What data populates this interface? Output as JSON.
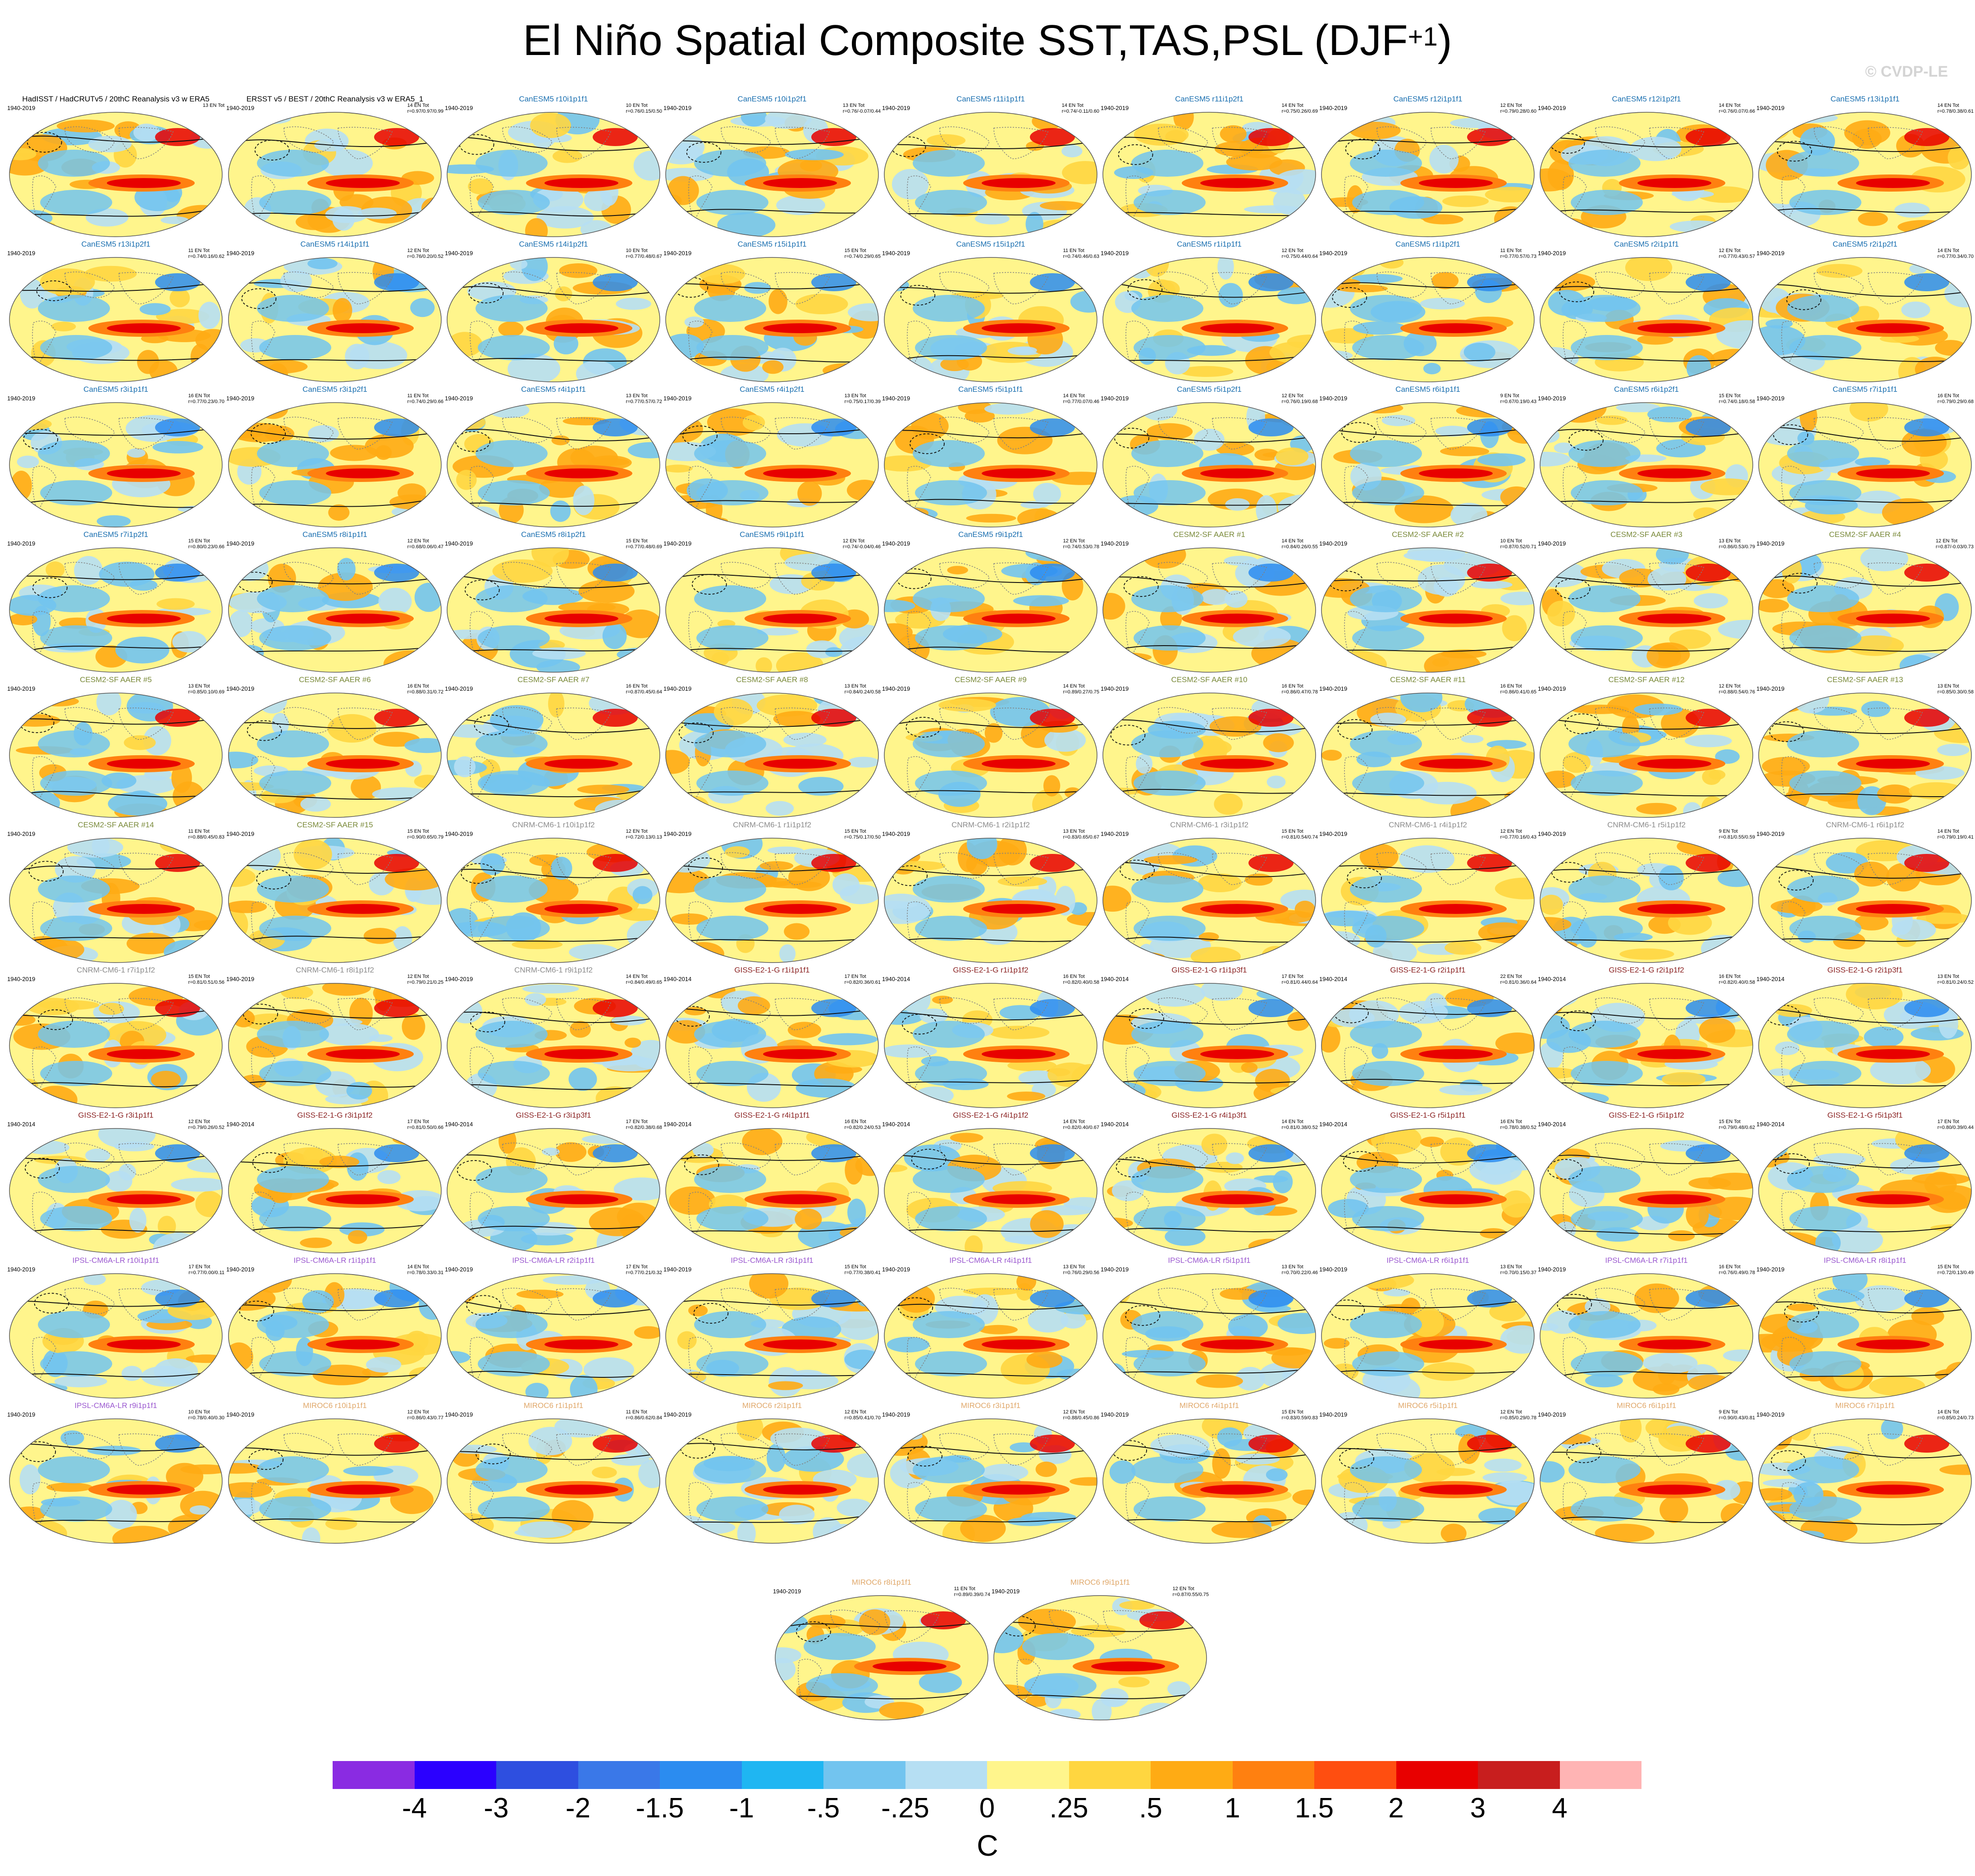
{
  "title": "El Niño Spatial Composite SST,TAS,PSL (DJF",
  "title_superscript": "+1",
  "title_close": ")",
  "watermark": "© CVDP-LE",
  "panels": [
    {
      "title": "HadISST / HadCRUTv5 / 20thC Reanalysis v3 w ERA5",
      "years": "1940-2019",
      "stats": "13 EN Tot",
      "color": "#000000"
    },
    {
      "title": "ERSST v5 / BEST / 20thC Reanalysis v3 w ERA5_1",
      "years": "1940-2019",
      "stats": "14 EN Tot\nr=0.97/0.97/0.99",
      "color": "#000000"
    },
    {
      "title": "CanESM5 r10i1p1f1",
      "years": "1940-2019",
      "stats": "10 EN Tot\nr=0.76/0.15/0.50",
      "color": "#1a6fb0"
    },
    {
      "title": "CanESM5 r10i1p2f1",
      "years": "1940-2019",
      "stats": "13 EN Tot\nr=0.76/-0.07/0.44",
      "color": "#1a6fb0"
    },
    {
      "title": "CanESM5 r11i1p1f1",
      "years": "1940-2019",
      "stats": "14 EN Tot\nr=0.74/-0.11/0.60",
      "color": "#1a6fb0"
    },
    {
      "title": "CanESM5 r11i1p2f1",
      "years": "1940-2019",
      "stats": "14 EN Tot\nr=0.75/0.26/0.69",
      "color": "#1a6fb0"
    },
    {
      "title": "CanESM5 r12i1p1f1",
      "years": "1940-2019",
      "stats": "12 EN Tot\nr=0.79/0.28/0.60",
      "color": "#1a6fb0"
    },
    {
      "title": "CanESM5 r12i1p2f1",
      "years": "1940-2019",
      "stats": "14 EN Tot\nr=0.76/0.07/0.66",
      "color": "#1a6fb0"
    },
    {
      "title": "CanESM5 r13i1p1f1",
      "years": "1940-2019",
      "stats": "14 EN Tot\nr=0.78/0.38/0.61",
      "color": "#1a6fb0"
    },
    {
      "title": "CanESM5 r13i1p2f1",
      "years": "1940-2019",
      "stats": "11 EN Tot\nr=0.74/0.16/0.62",
      "color": "#1a6fb0"
    },
    {
      "title": "CanESM5 r14i1p1f1",
      "years": "1940-2019",
      "stats": "12 EN Tot\nr=0.76/0.20/0.52",
      "color": "#1a6fb0"
    },
    {
      "title": "CanESM5 r14i1p2f1",
      "years": "1940-2019",
      "stats": "10 EN Tot\nr=0.77/0.48/0.67",
      "color": "#1a6fb0"
    },
    {
      "title": "CanESM5 r15i1p1f1",
      "years": "1940-2019",
      "stats": "15 EN Tot\nr=0.74/0.29/0.65",
      "color": "#1a6fb0"
    },
    {
      "title": "CanESM5 r15i1p2f1",
      "years": "1940-2019",
      "stats": "11 EN Tot\nr=0.74/0.46/0.63",
      "color": "#1a6fb0"
    },
    {
      "title": "CanESM5 r1i1p1f1",
      "years": "1940-2019",
      "stats": "12 EN Tot\nr=0.75/0.44/0.64",
      "color": "#1a6fb0"
    },
    {
      "title": "CanESM5 r1i1p2f1",
      "years": "1940-2019",
      "stats": "11 EN Tot\nr=0.77/0.57/0.73",
      "color": "#1a6fb0"
    },
    {
      "title": "CanESM5 r2i1p1f1",
      "years": "1940-2019",
      "stats": "12 EN Tot\nr=0.77/0.43/0.57",
      "color": "#1a6fb0"
    },
    {
      "title": "CanESM5 r2i1p2f1",
      "years": "1940-2019",
      "stats": "14 EN Tot\nr=0.77/0.34/0.70",
      "color": "#1a6fb0"
    },
    {
      "title": "CanESM5 r3i1p1f1",
      "years": "1940-2019",
      "stats": "16 EN Tot\nr=0.77/0.23/0.70",
      "color": "#1a6fb0"
    },
    {
      "title": "CanESM5 r3i1p2f1",
      "years": "1940-2019",
      "stats": "11 EN Tot\nr=0.74/0.29/0.66",
      "color": "#1a6fb0"
    },
    {
      "title": "CanESM5 r4i1p1f1",
      "years": "1940-2019",
      "stats": "13 EN Tot\nr=0.77/0.57/0.72",
      "color": "#1a6fb0"
    },
    {
      "title": "CanESM5 r4i1p2f1",
      "years": "1940-2019",
      "stats": "13 EN Tot\nr=0.75/0.17/0.39",
      "color": "#1a6fb0"
    },
    {
      "title": "CanESM5 r5i1p1f1",
      "years": "1940-2019",
      "stats": "14 EN Tot\nr=0.77/0.07/0.46",
      "color": "#1a6fb0"
    },
    {
      "title": "CanESM5 r5i1p2f1",
      "years": "1940-2019",
      "stats": "12 EN Tot\nr=0.76/0.19/0.68",
      "color": "#1a6fb0"
    },
    {
      "title": "CanESM5 r6i1p1f1",
      "years": "1940-2019",
      "stats": "9 EN Tot\nr=0.67/0.19/0.43",
      "color": "#1a6fb0"
    },
    {
      "title": "CanESM5 r6i1p2f1",
      "years": "1940-2019",
      "stats": "15 EN Tot\nr=0.74/0.18/0.58",
      "color": "#1a6fb0"
    },
    {
      "title": "CanESM5 r7i1p1f1",
      "years": "1940-2019",
      "stats": "16 EN Tot\nr=0.79/0.29/0.68",
      "color": "#1a6fb0"
    },
    {
      "title": "CanESM5 r7i1p2f1",
      "years": "1940-2019",
      "stats": "15 EN Tot\nr=0.80/0.23/0.66",
      "color": "#1a6fb0"
    },
    {
      "title": "CanESM5 r8i1p1f1",
      "years": "1940-2019",
      "stats": "12 EN Tot\nr=0.68/0.06/0.47",
      "color": "#1a6fb0"
    },
    {
      "title": "CanESM5 r8i1p2f1",
      "years": "1940-2019",
      "stats": "15 EN Tot\nr=0.77/0.48/0.69",
      "color": "#1a6fb0"
    },
    {
      "title": "CanESM5 r9i1p1f1",
      "years": "1940-2019",
      "stats": "12 EN Tot\nr=0.74/-0.04/0.46",
      "color": "#1a6fb0"
    },
    {
      "title": "CanESM5 r9i1p2f1",
      "years": "1940-2019",
      "stats": "12 EN Tot\nr=0.74/0.53/0.78",
      "color": "#1a6fb0"
    },
    {
      "title": "CESM2-SF AAER #1",
      "years": "1940-2019",
      "stats": "14 EN Tot\nr=0.84/0.26/0.55",
      "color": "#7a8a3a"
    },
    {
      "title": "CESM2-SF AAER #2",
      "years": "1940-2019",
      "stats": "10 EN Tot\nr=0.87/0.52/0.71",
      "color": "#7a8a3a"
    },
    {
      "title": "CESM2-SF AAER #3",
      "years": "1940-2019",
      "stats": "13 EN Tot\nr=0.86/0.53/0.79",
      "color": "#7a8a3a"
    },
    {
      "title": "CESM2-SF AAER #4",
      "years": "1940-2019",
      "stats": "12 EN Tot\nr=0.87/-0.03/0.73",
      "color": "#7a8a3a"
    },
    {
      "title": "CESM2-SF AAER #5",
      "years": "1940-2019",
      "stats": "13 EN Tot\nr=0.85/0.10/0.69",
      "color": "#7a8a3a"
    },
    {
      "title": "CESM2-SF AAER #6",
      "years": "1940-2019",
      "stats": "16 EN Tot\nr=0.88/0.31/0.72",
      "color": "#7a8a3a"
    },
    {
      "title": "CESM2-SF AAER #7",
      "years": "1940-2019",
      "stats": "16 EN Tot\nr=0.87/0.45/0.64",
      "color": "#7a8a3a"
    },
    {
      "title": "CESM2-SF AAER #8",
      "years": "1940-2019",
      "stats": "13 EN Tot\nr=0.84/0.24/0.58",
      "color": "#7a8a3a"
    },
    {
      "title": "CESM2-SF AAER #9",
      "years": "1940-2019",
      "stats": "14 EN Tot\nr=0.89/0.27/0.75",
      "color": "#7a8a3a"
    },
    {
      "title": "CESM2-SF AAER #10",
      "years": "1940-2019",
      "stats": "16 EN Tot\nr=0.86/0.47/0.78",
      "color": "#7a8a3a"
    },
    {
      "title": "CESM2-SF AAER #11",
      "years": "1940-2019",
      "stats": "16 EN Tot\nr=0.86/0.41/0.65",
      "color": "#7a8a3a"
    },
    {
      "title": "CESM2-SF AAER #12",
      "years": "1940-2019",
      "stats": "12 EN Tot\nr=0.88/0.54/0.76",
      "color": "#7a8a3a"
    },
    {
      "title": "CESM2-SF AAER #13",
      "years": "1940-2019",
      "stats": "13 EN Tot\nr=0.85/0.30/0.58",
      "color": "#7a8a3a"
    },
    {
      "title": "CESM2-SF AAER #14",
      "years": "1940-2019",
      "stats": "11 EN Tot\nr=0.88/0.45/0.83",
      "color": "#7a8a3a"
    },
    {
      "title": "CESM2-SF AAER #15",
      "years": "1940-2019",
      "stats": "15 EN Tot\nr=0.90/0.65/0.79",
      "color": "#7a8a3a"
    },
    {
      "title": "CNRM-CM6-1 r10i1p1f2",
      "years": "1940-2019",
      "stats": "12 EN Tot\nr=0.72/0.13/0.13",
      "color": "#8c8c8c"
    },
    {
      "title": "CNRM-CM6-1 r1i1p1f2",
      "years": "1940-2019",
      "stats": "15 EN Tot\nr=0.75/0.17/0.50",
      "color": "#8c8c8c"
    },
    {
      "title": "CNRM-CM6-1 r2i1p1f2",
      "years": "1940-2019",
      "stats": "13 EN Tot\nr=0.83/0.65/0.67",
      "color": "#8c8c8c"
    },
    {
      "title": "CNRM-CM6-1 r3i1p1f2",
      "years": "1940-2019",
      "stats": "15 EN Tot\nr=0.81/0.54/0.74",
      "color": "#8c8c8c"
    },
    {
      "title": "CNRM-CM6-1 r4i1p1f2",
      "years": "1940-2019",
      "stats": "12 EN Tot\nr=0.77/0.16/0.43",
      "color": "#8c8c8c"
    },
    {
      "title": "CNRM-CM6-1 r5i1p1f2",
      "years": "1940-2019",
      "stats": "9 EN Tot\nr=0.81/0.55/0.59",
      "color": "#8c8c8c"
    },
    {
      "title": "CNRM-CM6-1 r6i1p1f2",
      "years": "1940-2019",
      "stats": "14 EN Tot\nr=0.79/0.19/0.41",
      "color": "#8c8c8c"
    },
    {
      "title": "CNRM-CM6-1 r7i1p1f2",
      "years": "1940-2019",
      "stats": "15 EN Tot\nr=0.81/0.51/0.56",
      "color": "#8c8c8c"
    },
    {
      "title": "CNRM-CM6-1 r8i1p1f2",
      "years": "1940-2019",
      "stats": "12 EN Tot\nr=0.79/0.21/0.25",
      "color": "#8c8c8c"
    },
    {
      "title": "CNRM-CM6-1 r9i1p1f2",
      "years": "1940-2019",
      "stats": "14 EN Tot\nr=0.84/0.49/0.65",
      "color": "#8c8c8c"
    },
    {
      "title": "GISS-E2-1-G r1i1p1f1",
      "years": "1940-2014",
      "stats": "17 EN Tot\nr=0.82/0.36/0.61",
      "color": "#8b2323"
    },
    {
      "title": "GISS-E2-1-G r1i1p1f2",
      "years": "1940-2014",
      "stats": "16 EN Tot\nr=0.82/0.40/0.58",
      "color": "#8b2323"
    },
    {
      "title": "GISS-E2-1-G r1i1p3f1",
      "years": "1940-2014",
      "stats": "17 EN Tot\nr=0.81/0.44/0.64",
      "color": "#8b2323"
    },
    {
      "title": "GISS-E2-1-G r2i1p1f1",
      "years": "1940-2014",
      "stats": "22 EN Tot\nr=0.81/0.36/0.64",
      "color": "#8b2323"
    },
    {
      "title": "GISS-E2-1-G r2i1p1f2",
      "years": "1940-2014",
      "stats": "16 EN Tot\nr=0.82/0.40/0.58",
      "color": "#8b2323"
    },
    {
      "title": "GISS-E2-1-G r2i1p3f1",
      "years": "1940-2014",
      "stats": "13 EN Tot\nr=0.81/0.24/0.52",
      "color": "#8b2323"
    },
    {
      "title": "GISS-E2-1-G r3i1p1f1",
      "years": "1940-2014",
      "stats": "12 EN Tot\nr=0.79/0.26/0.52",
      "color": "#8b2323"
    },
    {
      "title": "GISS-E2-1-G r3i1p1f2",
      "years": "1940-2014",
      "stats": "17 EN Tot\nr=0.81/0.50/0.66",
      "color": "#8b2323"
    },
    {
      "title": "GISS-E2-1-G r3i1p3f1",
      "years": "1940-2014",
      "stats": "17 EN Tot\nr=0.82/0.38/0.68",
      "color": "#8b2323"
    },
    {
      "title": "GISS-E2-1-G r4i1p1f1",
      "years": "1940-2014",
      "stats": "16 EN Tot\nr=0.82/0.24/0.53",
      "color": "#8b2323"
    },
    {
      "title": "GISS-E2-1-G r4i1p1f2",
      "years": "1940-2014",
      "stats": "14 EN Tot\nr=0.82/0.40/0.67",
      "color": "#8b2323"
    },
    {
      "title": "GISS-E2-1-G r4i1p3f1",
      "years": "1940-2014",
      "stats": "14 EN Tot\nr=0.81/0.38/0.52",
      "color": "#8b2323"
    },
    {
      "title": "GISS-E2-1-G r5i1p1f1",
      "years": "1940-2014",
      "stats": "16 EN Tot\nr=0.78/0.38/0.52",
      "color": "#8b2323"
    },
    {
      "title": "GISS-E2-1-G r5i1p1f2",
      "years": "1940-2014",
      "stats": "15 EN Tot\nr=0.79/0.48/0.62",
      "color": "#8b2323"
    },
    {
      "title": "GISS-E2-1-G r5i1p3f1",
      "years": "1940-2014",
      "stats": "17 EN Tot\nr=0.80/0.39/0.44",
      "color": "#8b2323"
    },
    {
      "title": "IPSL-CM6A-LR r10i1p1f1",
      "years": "1940-2019",
      "stats": "17 EN Tot\nr=0.77/0.00/0.11",
      "color": "#9b59d0"
    },
    {
      "title": "IPSL-CM6A-LR r1i1p1f1",
      "years": "1940-2019",
      "stats": "14 EN Tot\nr=0.78/0.33/0.31",
      "color": "#9b59d0"
    },
    {
      "title": "IPSL-CM6A-LR r2i1p1f1",
      "years": "1940-2019",
      "stats": "17 EN Tot\nr=0.77/0.21/0.32",
      "color": "#9b59d0"
    },
    {
      "title": "IPSL-CM6A-LR r3i1p1f1",
      "years": "1940-2019",
      "stats": "15 EN Tot\nr=0.77/0.38/0.41",
      "color": "#9b59d0"
    },
    {
      "title": "IPSL-CM6A-LR r4i1p1f1",
      "years": "1940-2019",
      "stats": "13 EN Tot\nr=0.76/0.29/0.56",
      "color": "#9b59d0"
    },
    {
      "title": "IPSL-CM6A-LR r5i1p1f1",
      "years": "1940-2019",
      "stats": "13 EN Tot\nr=0.70/0.22/0.46",
      "color": "#9b59d0"
    },
    {
      "title": "IPSL-CM6A-LR r6i1p1f1",
      "years": "1940-2019",
      "stats": "13 EN Tot\nr=0.70/0.15/0.37",
      "color": "#9b59d0"
    },
    {
      "title": "IPSL-CM6A-LR r7i1p1f1",
      "years": "1940-2019",
      "stats": "16 EN Tot\nr=0.76/0.49/0.78",
      "color": "#9b59d0"
    },
    {
      "title": "IPSL-CM6A-LR r8i1p1f1",
      "years": "1940-2019",
      "stats": "15 EN Tot\nr=0.72/0.13/0.49",
      "color": "#9b59d0"
    },
    {
      "title": "IPSL-CM6A-LR r9i1p1f1",
      "years": "1940-2019",
      "stats": "10 EN Tot\nr=0.78/0.40/0.30",
      "color": "#9b59d0"
    },
    {
      "title": "MIROC6 r10i1p1f1",
      "years": "1940-2019",
      "stats": "12 EN Tot\nr=0.86/0.43/0.77",
      "color": "#e0a86a"
    },
    {
      "title": "MIROC6 r1i1p1f1",
      "years": "1940-2019",
      "stats": "11 EN Tot\nr=0.86/0.62/0.84",
      "color": "#e0a86a"
    },
    {
      "title": "MIROC6 r2i1p1f1",
      "years": "1940-2019",
      "stats": "12 EN Tot\nr=0.85/0.41/0.70",
      "color": "#e0a86a"
    },
    {
      "title": "MIROC6 r3i1p1f1",
      "years": "1940-2019",
      "stats": "12 EN Tot\nr=0.88/0.45/0.86",
      "color": "#e0a86a"
    },
    {
      "title": "MIROC6 r4i1p1f1",
      "years": "1940-2019",
      "stats": "15 EN Tot\nr=0.83/0.59/0.83",
      "color": "#e0a86a"
    },
    {
      "title": "MIROC6 r5i1p1f1",
      "years": "1940-2019",
      "stats": "12 EN Tot\nr=0.85/0.29/0.78",
      "color": "#e0a86a"
    },
    {
      "title": "MIROC6 r6i1p1f1",
      "years": "1940-2019",
      "stats": "9 EN Tot\nr=0.90/0.43/0.81",
      "color": "#e0a86a"
    },
    {
      "title": "MIROC6 r7i1p1f1",
      "years": "1940-2019",
      "stats": "14 EN Tot\nr=0.85/0.24/0.73",
      "color": "#e0a86a"
    },
    {
      "title": "MIROC6 r8i1p1f1",
      "years": "1940-2019",
      "stats": "11 EN Tot\nr=0.89/0.39/0.74",
      "color": "#e0a86a"
    },
    {
      "title": "MIROC6 r9i1p1f1",
      "years": "1940-2019",
      "stats": "12 EN Tot\nr=0.87/0.55/0.75",
      "color": "#e0a86a"
    }
  ],
  "colorbar": {
    "colors": [
      "#8a2be2",
      "#2b00ff",
      "#2e4fe0",
      "#3a78e8",
      "#2b8cf0",
      "#1fb6f2",
      "#72c4ef",
      "#b6dff3",
      "#fff58c",
      "#ffd640",
      "#ffab14",
      "#ff8010",
      "#ff4e10",
      "#e80000",
      "#c81e1e",
      "#ffb4b4"
    ],
    "ticks": [
      "-4",
      "-3",
      "-2",
      "-1.5",
      "-1",
      "-.5",
      "-.25",
      "0",
      ".25",
      ".5",
      "1",
      "1.5",
      "2",
      "3",
      "4"
    ],
    "unit": "C"
  }
}
